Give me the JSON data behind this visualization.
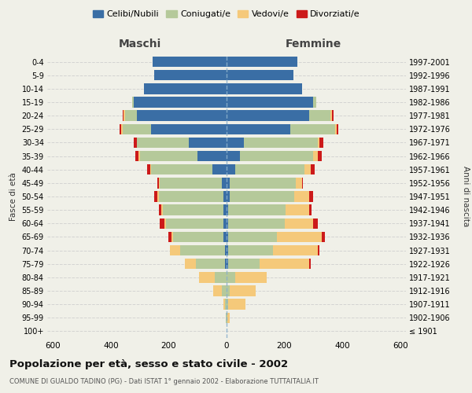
{
  "age_groups": [
    "100+",
    "95-99",
    "90-94",
    "85-89",
    "80-84",
    "75-79",
    "70-74",
    "65-69",
    "60-64",
    "55-59",
    "50-54",
    "45-49",
    "40-44",
    "35-39",
    "30-34",
    "25-29",
    "20-24",
    "15-19",
    "10-14",
    "5-9",
    "0-4"
  ],
  "birth_years": [
    "≤ 1901",
    "1902-1906",
    "1907-1911",
    "1912-1916",
    "1917-1921",
    "1922-1926",
    "1927-1931",
    "1932-1936",
    "1937-1941",
    "1942-1946",
    "1947-1951",
    "1952-1956",
    "1957-1961",
    "1962-1966",
    "1967-1971",
    "1972-1976",
    "1977-1981",
    "1982-1986",
    "1987-1991",
    "1992-1996",
    "1997-2001"
  ],
  "maschi": {
    "celibi": [
      0,
      0,
      0,
      0,
      0,
      5,
      5,
      10,
      10,
      10,
      10,
      15,
      50,
      100,
      130,
      260,
      310,
      320,
      285,
      250,
      255
    ],
    "coniugati": [
      0,
      2,
      5,
      15,
      40,
      100,
      155,
      175,
      200,
      210,
      225,
      215,
      210,
      200,
      180,
      100,
      40,
      5,
      0,
      0,
      0
    ],
    "vedovi": [
      0,
      0,
      5,
      30,
      55,
      40,
      35,
      5,
      5,
      5,
      5,
      5,
      5,
      5,
      0,
      5,
      5,
      0,
      0,
      0,
      0
    ],
    "divorziati": [
      0,
      0,
      0,
      0,
      0,
      0,
      0,
      10,
      15,
      10,
      10,
      5,
      10,
      10,
      10,
      5,
      5,
      0,
      0,
      0,
      0
    ]
  },
  "femmine": {
    "nubili": [
      0,
      0,
      0,
      0,
      0,
      5,
      5,
      5,
      5,
      5,
      10,
      10,
      30,
      45,
      60,
      220,
      285,
      300,
      260,
      230,
      245
    ],
    "coniugate": [
      0,
      2,
      5,
      10,
      30,
      110,
      155,
      170,
      195,
      200,
      225,
      230,
      240,
      255,
      255,
      155,
      75,
      10,
      0,
      0,
      0
    ],
    "vedove": [
      0,
      10,
      60,
      90,
      110,
      170,
      155,
      155,
      100,
      80,
      50,
      20,
      20,
      15,
      5,
      5,
      5,
      0,
      0,
      0,
      0
    ],
    "divorziate": [
      0,
      0,
      0,
      0,
      0,
      5,
      5,
      10,
      15,
      10,
      15,
      5,
      15,
      15,
      15,
      5,
      5,
      0,
      0,
      0,
      0
    ]
  },
  "colors": {
    "celibi": "#3a6ea5",
    "coniugati": "#b5c99a",
    "vedovi": "#f5c97a",
    "divorziati": "#cc1a1a"
  },
  "title": "Popolazione per età, sesso e stato civile - 2002",
  "subtitle": "COMUNE DI GUALDO TADINO (PG) - Dati ISTAT 1° gennaio 2002 - Elaborazione TUTTAITALIA.IT",
  "xlabel_left": "Maschi",
  "xlabel_right": "Femmine",
  "ylabel_left": "Fasce di età",
  "ylabel_right": "Anni di nascita",
  "xlim": 620,
  "background_color": "#f0f0e8",
  "legend_labels": [
    "Celibi/Nubili",
    "Coniugati/e",
    "Vedovi/e",
    "Divorziati/e"
  ]
}
